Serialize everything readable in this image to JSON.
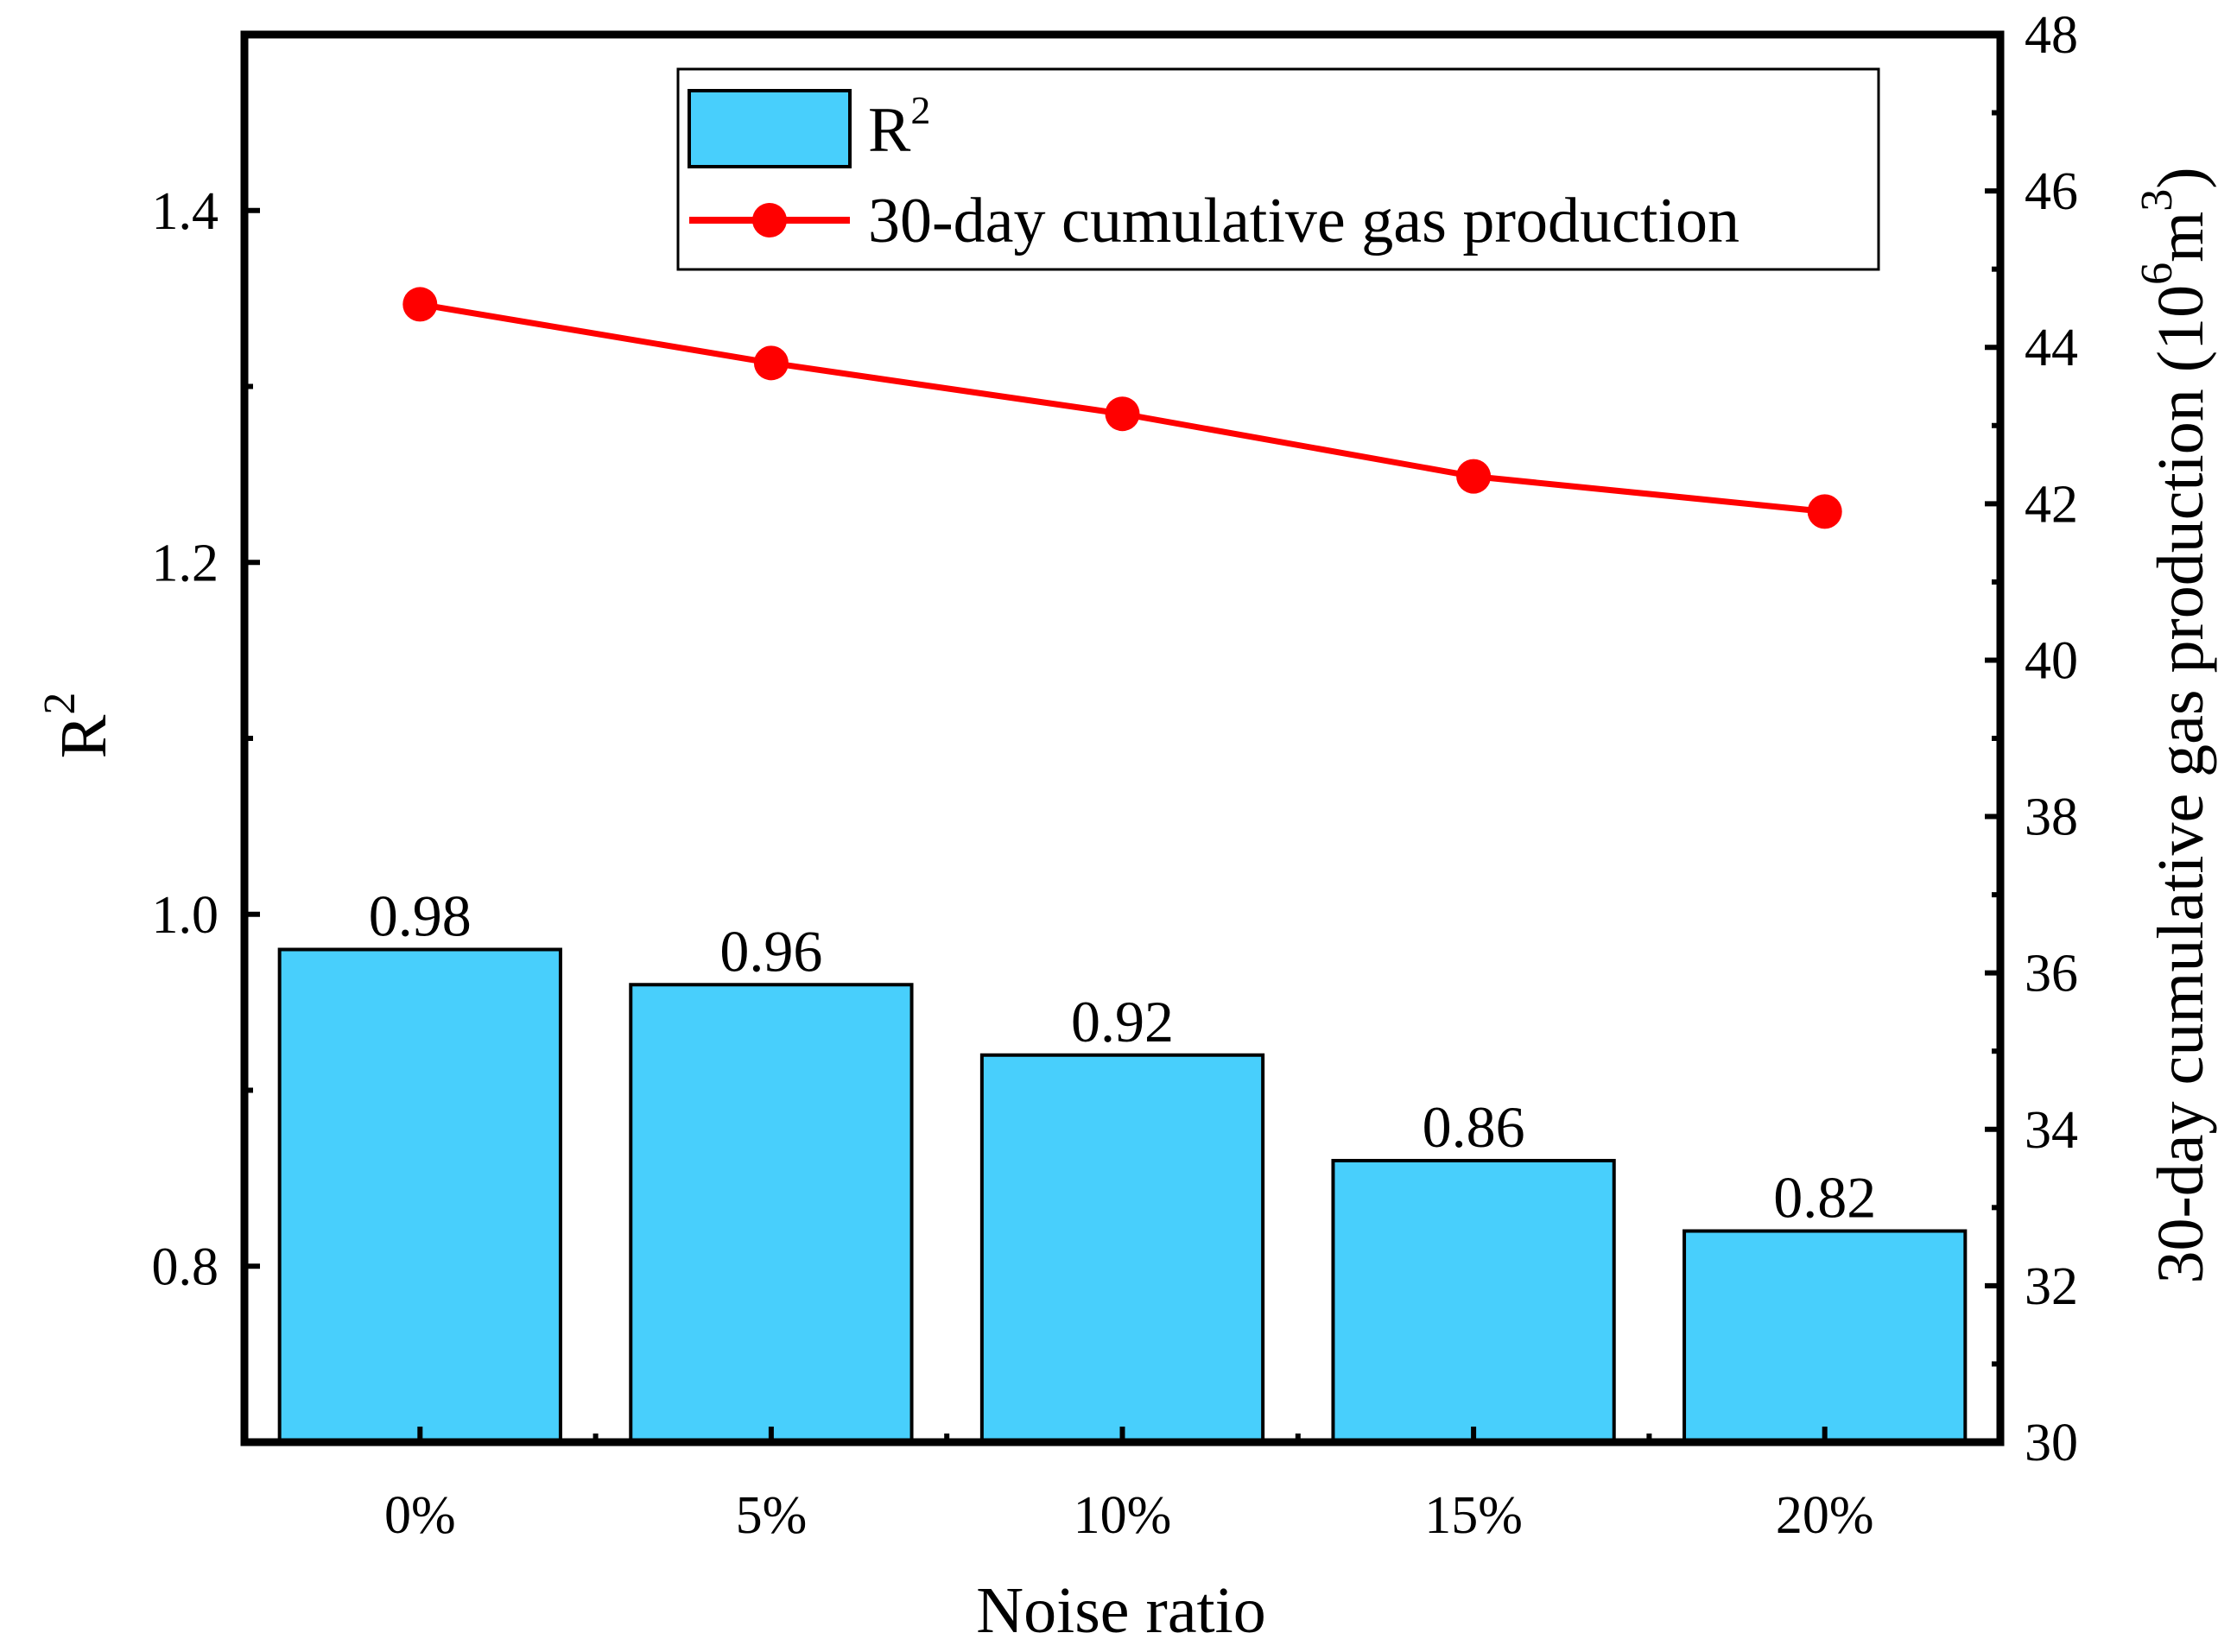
{
  "chart_data": {
    "type": "bar",
    "categories": [
      "0%",
      "5%",
      "10%",
      "15%",
      "20%"
    ],
    "xlabel": "Noise ratio",
    "ylabel": "R",
    "ylabel_sup": "2",
    "y2label": "30-day cumulative gas production (10",
    "y2label_sup1": "6",
    "y2label_mid": "m",
    "y2label_sup2": "3",
    "y2label_end": ")",
    "ylim": [
      0.7,
      1.5
    ],
    "yticks": [
      "0.8",
      "1.0",
      "1.2",
      "1.4"
    ],
    "y2lim": [
      30,
      48
    ],
    "y2ticks": [
      "30",
      "32",
      "34",
      "36",
      "38",
      "40",
      "42",
      "44",
      "46",
      "48"
    ],
    "grid": false,
    "legend_position": "top-right",
    "series": [
      {
        "name": "R",
        "name_sup": "2",
        "type": "bar",
        "axis": "left",
        "values": [
          0.98,
          0.96,
          0.92,
          0.86,
          0.82
        ],
        "labels": [
          "0.98",
          "0.96",
          "0.92",
          "0.86",
          "0.82"
        ],
        "color": "#48CFFC"
      },
      {
        "name": "30-day cumulative gas production",
        "type": "line",
        "axis": "right",
        "values": [
          44.55,
          43.8,
          43.15,
          42.35,
          41.9
        ],
        "color": "#FF0000"
      }
    ]
  }
}
